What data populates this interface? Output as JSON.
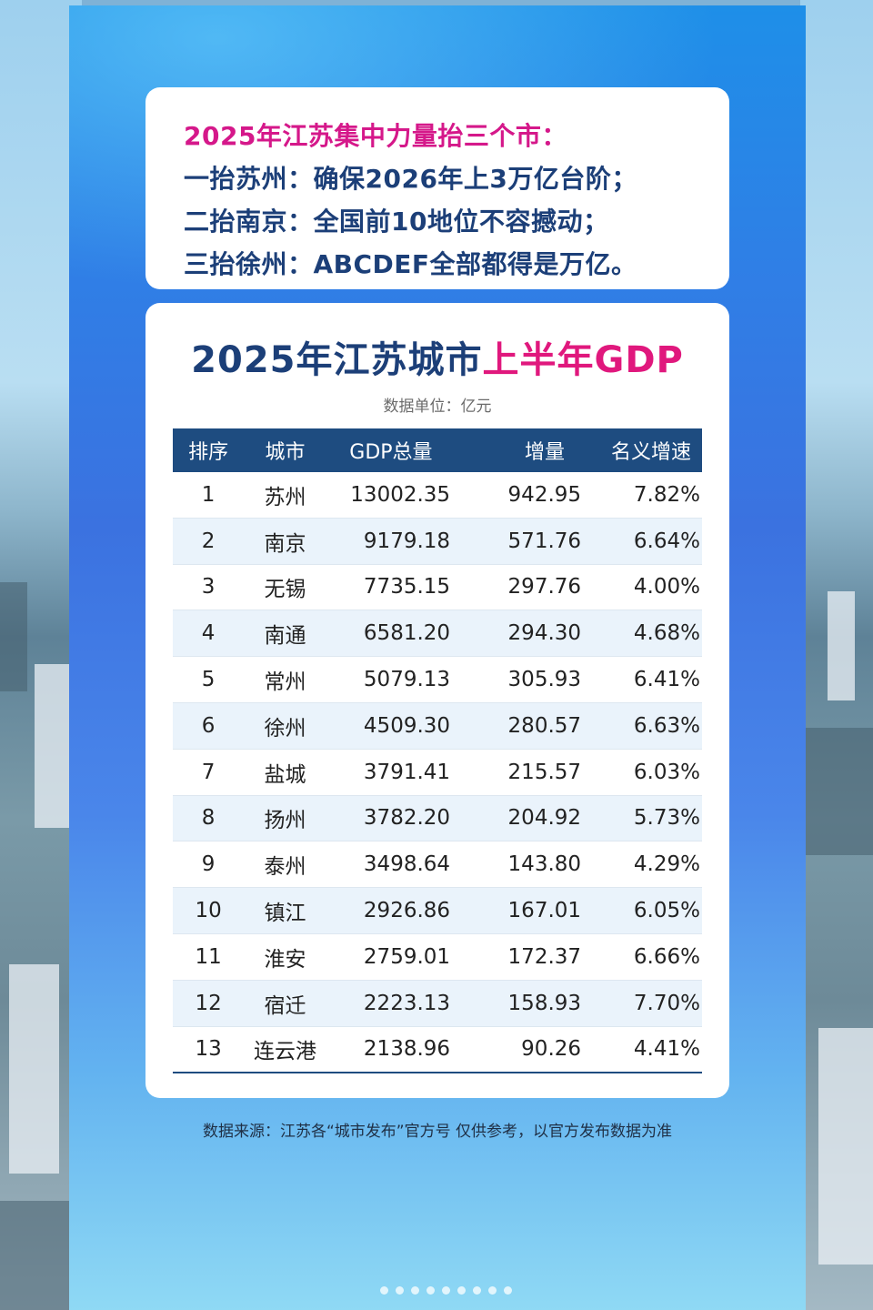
{
  "headline": {
    "lines": [
      "2025年江苏集中力量抬三个市：",
      "一抬苏州：确保2026年上3万亿台阶；",
      "二抬南京：全国前10地位不容撼动；",
      "三抬徐州：ABCDEF全部都得是万亿。"
    ]
  },
  "table_card": {
    "title_main": "2025年江苏城市",
    "title_highlight": "上半年GDP",
    "unit": "数据单位：亿元",
    "headers": [
      "排序",
      "城市",
      "GDP总量",
      "增量",
      "名义增速"
    ],
    "rows": [
      [
        "1",
        "苏州",
        "13002.35",
        "942.95",
        "7.82%"
      ],
      [
        "2",
        "南京",
        "9179.18",
        "571.76",
        "6.64%"
      ],
      [
        "3",
        "无锡",
        "7735.15",
        "297.76",
        "4.00%"
      ],
      [
        "4",
        "南通",
        "6581.20",
        "294.30",
        "4.68%"
      ],
      [
        "5",
        "常州",
        "5079.13",
        "305.93",
        "6.41%"
      ],
      [
        "6",
        "徐州",
        "4509.30",
        "280.57",
        "6.63%"
      ],
      [
        "7",
        "盐城",
        "3791.41",
        "215.57",
        "6.03%"
      ],
      [
        "8",
        "扬州",
        "3782.20",
        "204.92",
        "5.73%"
      ],
      [
        "9",
        "泰州",
        "3498.64",
        "143.80",
        "4.29%"
      ],
      [
        "10",
        "镇江",
        "2926.86",
        "167.01",
        "6.05%"
      ],
      [
        "11",
        "淮安",
        "2759.01",
        "172.37",
        "6.66%"
      ],
      [
        "12",
        "宿迁",
        "2223.13",
        "158.93",
        "7.70%"
      ],
      [
        "13",
        "连云港",
        "2138.96",
        "90.26",
        "4.41%"
      ]
    ]
  },
  "source": "数据来源：江苏各“城市发布”官方号    仅供参考，以官方发布数据为准",
  "colors": {
    "navy": "#1c3f78",
    "magenta": "#e0187d",
    "header_bg": "#1e4c80"
  }
}
